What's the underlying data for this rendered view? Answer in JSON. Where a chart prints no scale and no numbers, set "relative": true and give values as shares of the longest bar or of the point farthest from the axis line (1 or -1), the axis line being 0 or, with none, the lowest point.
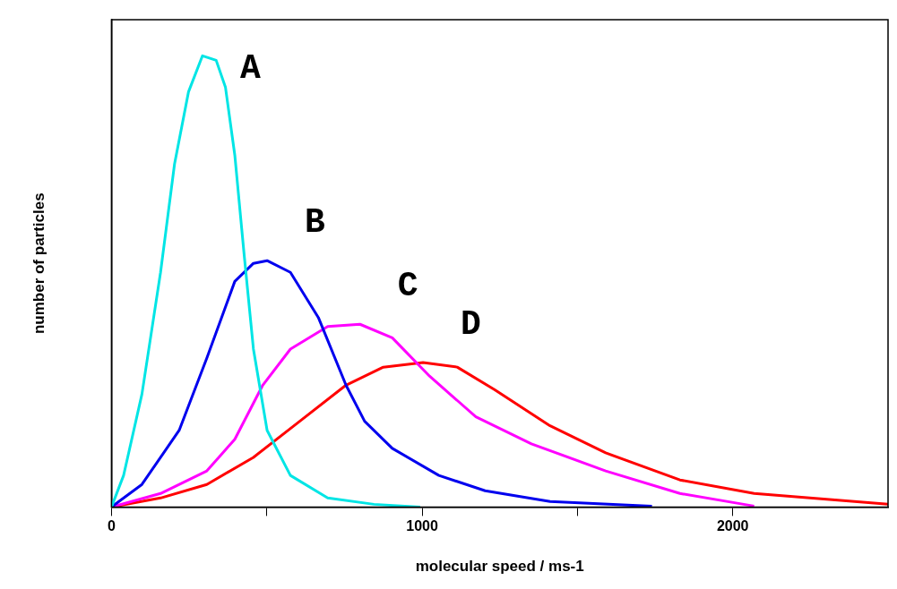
{
  "chart_data": {
    "type": "line",
    "xlabel": "molecular speed / ms-1",
    "ylabel": "number of particles",
    "relative": true,
    "xlim": [
      0,
      2500
    ],
    "xticks": [
      0,
      {
        "value": 500,
        "label": null
      },
      1000,
      {
        "value": 1500,
        "label": null
      },
      2000
    ],
    "grid": false,
    "legend": false,
    "marker": "none",
    "line_style": "solid",
    "series": [
      {
        "name": "A",
        "color": "#00e5e5",
        "x": [
          0,
          39,
          98,
          158,
          203,
          248,
          293,
          337,
          367,
          397,
          427,
          457,
          501,
          576,
          696,
          845,
          994
        ],
        "values": [
          0,
          0.07,
          0.25,
          0.52,
          0.76,
          0.92,
          1,
          0.99,
          0.93,
          0.78,
          0.56,
          0.35,
          0.17,
          0.07,
          0.02,
          0.006,
          0
        ]
      },
      {
        "name": "B",
        "color": "#0000ee",
        "x": [
          0,
          98,
          218,
          307,
          397,
          457,
          501,
          576,
          666,
          755,
          815,
          904,
          1054,
          1203,
          1412,
          1740
        ],
        "values": [
          0,
          0.05,
          0.17,
          0.33,
          0.5,
          0.54,
          0.546,
          0.52,
          0.42,
          0.27,
          0.19,
          0.13,
          0.07,
          0.036,
          0.012,
          0.002
        ]
      },
      {
        "name": "C",
        "color": "#ff00ff",
        "x": [
          0,
          158,
          307,
          397,
          487,
          576,
          696,
          800,
          904,
          1024,
          1173,
          1352,
          1591,
          1830,
          2069
        ],
        "values": [
          0,
          0.03,
          0.08,
          0.15,
          0.27,
          0.35,
          0.4,
          0.405,
          0.375,
          0.29,
          0.2,
          0.14,
          0.08,
          0.03,
          0.002
        ]
      },
      {
        "name": "D",
        "color": "#ff0000",
        "x": [
          0,
          158,
          307,
          457,
          606,
          755,
          875,
          1003,
          1113,
          1233,
          1412,
          1591,
          1830,
          2069,
          2500
        ],
        "values": [
          0,
          0.02,
          0.05,
          0.11,
          0.19,
          0.27,
          0.31,
          0.32,
          0.31,
          0.26,
          0.18,
          0.12,
          0.06,
          0.03,
          0.006
        ]
      }
    ]
  }
}
